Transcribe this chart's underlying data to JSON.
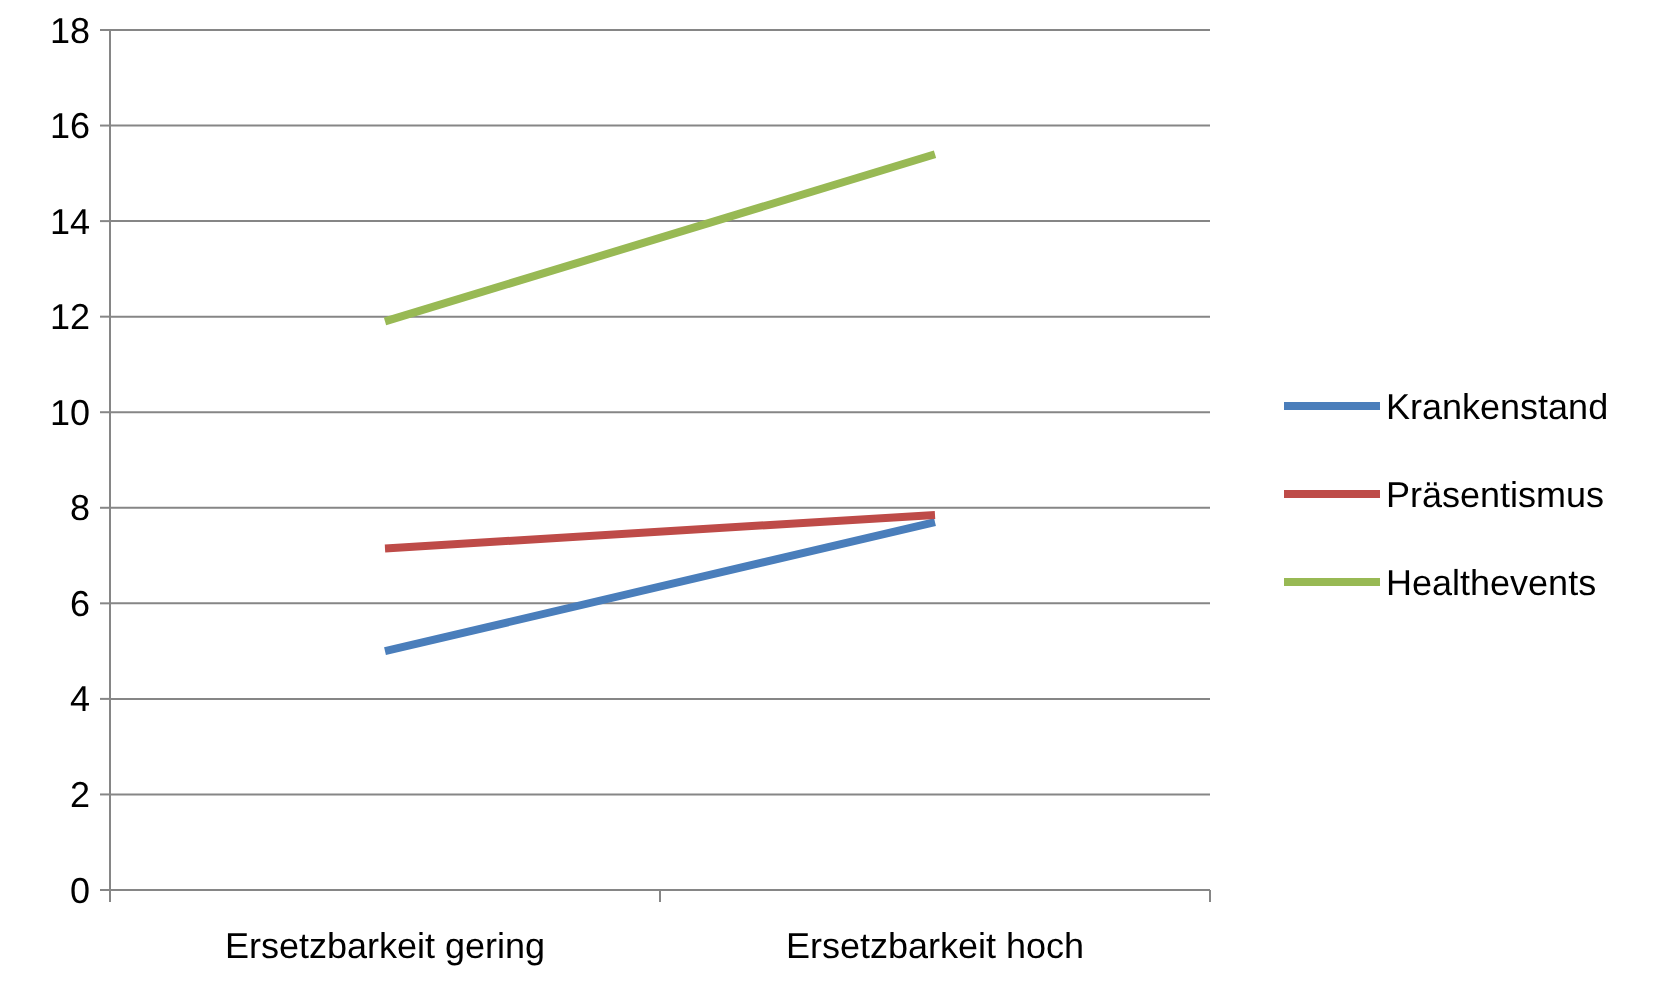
{
  "chart_data": {
    "type": "line",
    "categories": [
      "Ersetzbarkeit gering",
      "Ersetzbarkeit hoch"
    ],
    "series": [
      {
        "name": "Krankenstand",
        "color": "#4a7ebb",
        "values": [
          5.0,
          7.7
        ]
      },
      {
        "name": "Präsentismus",
        "color": "#be4b48",
        "values": [
          7.15,
          7.85
        ]
      },
      {
        "name": "Healthevents",
        "color": "#98b954",
        "values": [
          11.9,
          15.4
        ]
      }
    ],
    "ylim": [
      0,
      18
    ],
    "yticks": [
      0,
      2,
      4,
      6,
      8,
      10,
      12,
      14,
      16,
      18
    ],
    "grid": "y",
    "legend": "right",
    "marker": "none",
    "line_style": "solid"
  }
}
